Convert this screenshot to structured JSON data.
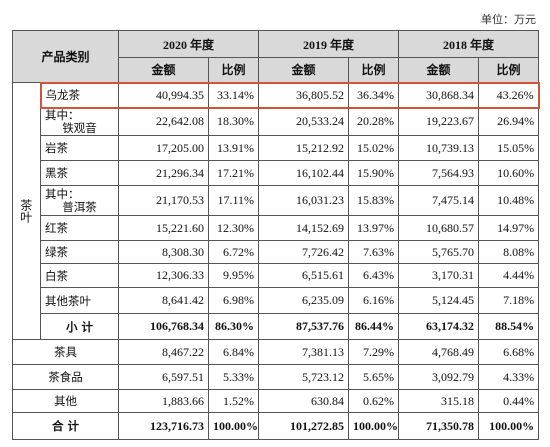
{
  "unit": "单位：万元",
  "header": {
    "category": "产品类别",
    "years": [
      "2020 年度",
      "2019 年度",
      "2018 年度"
    ],
    "columns": [
      "金额",
      "比例",
      "金额",
      "比例",
      "金额",
      "比例"
    ]
  },
  "tea": {
    "label": "茶叶",
    "rows": [
      {
        "label": "乌龙茶",
        "cells": [
          "40,994.35",
          "33.14%",
          "36,805.52",
          "36.34%",
          "30,868.34",
          "43.26%"
        ],
        "highlighted": true
      },
      {
        "prefix": "其中：",
        "label": "铁观音",
        "cells": [
          "22,642.08",
          "18.30%",
          "20,533.24",
          "20.28%",
          "19,223.67",
          "26.94%"
        ]
      },
      {
        "label": "岩茶",
        "cells": [
          "17,205.00",
          "13.91%",
          "15,212.92",
          "15.02%",
          "10,739.13",
          "15.05%"
        ]
      },
      {
        "label": "黑茶",
        "cells": [
          "21,296.34",
          "17.21%",
          "16,102.44",
          "15.90%",
          "7,564.93",
          "10.60%"
        ]
      },
      {
        "prefix": "其中：",
        "label": "普洱茶",
        "cells": [
          "21,170.53",
          "17.11%",
          "16,031.23",
          "15.83%",
          "7,475.14",
          "10.48%"
        ]
      },
      {
        "label": "红茶",
        "cells": [
          "15,221.60",
          "12.30%",
          "14,152.69",
          "13.97%",
          "10,680.57",
          "14.97%"
        ]
      },
      {
        "label": "绿茶",
        "cells": [
          "8,308.30",
          "6.72%",
          "7,726.42",
          "7.63%",
          "5,765.70",
          "8.08%"
        ]
      },
      {
        "label": "白茶",
        "cells": [
          "12,306.33",
          "9.95%",
          "6,515.61",
          "6.43%",
          "3,170.31",
          "4.44%"
        ]
      },
      {
        "label": "其他茶叶",
        "cells": [
          "8,641.42",
          "6.98%",
          "6,235.09",
          "6.16%",
          "5,124.45",
          "7.18%"
        ]
      },
      {
        "label": "小 计",
        "cells": [
          "106,768.34",
          "86.30%",
          "87,537.76",
          "86.44%",
          "63,174.32",
          "88.54%"
        ],
        "bold": true
      }
    ]
  },
  "other_rows": [
    {
      "label": "茶具",
      "cells": [
        "8,467.22",
        "6.84%",
        "7,381.13",
        "7.29%",
        "4,768.49",
        "6.68%"
      ]
    },
    {
      "label": "茶食品",
      "cells": [
        "6,597.51",
        "5.33%",
        "5,723.12",
        "5.65%",
        "3,092.79",
        "4.33%"
      ]
    },
    {
      "label": "其他",
      "cells": [
        "1,883.66",
        "1.52%",
        "630.84",
        "0.62%",
        "315.18",
        "0.44%"
      ]
    }
  ],
  "total": {
    "label": "合 计",
    "cells": [
      "123,716.73",
      "100.00%",
      "101,272.85",
      "100.00%",
      "71,350.78",
      "100.00%"
    ]
  }
}
